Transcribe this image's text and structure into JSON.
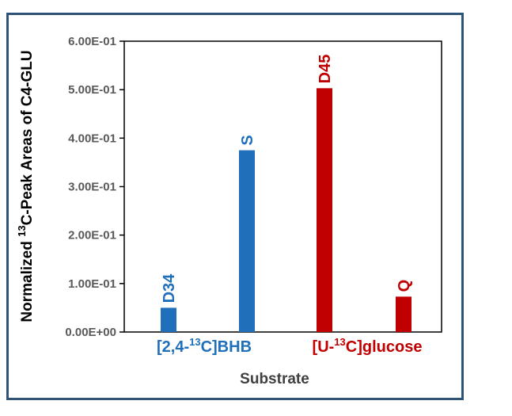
{
  "chart_data": {
    "type": "bar",
    "ylabel": "Normalized 13C-Peak Areas of C4-GLU",
    "ylabel_parts": {
      "pre": "Normalized ",
      "sup": "13",
      "post": "C-Peak Areas of C4-GLU"
    },
    "xlabel": "Substrate",
    "ylim": [
      0,
      0.6
    ],
    "yticks": [
      {
        "value": 0.0,
        "label": "0.00E+00"
      },
      {
        "value": 0.1,
        "label": "1.00E-01"
      },
      {
        "value": 0.2,
        "label": "2.00E-01"
      },
      {
        "value": 0.3,
        "label": "3.00E-01"
      },
      {
        "value": 0.4,
        "label": "4.00E-01"
      },
      {
        "value": 0.5,
        "label": "5.00E-01"
      },
      {
        "value": 0.6,
        "label": "6.00E-01"
      }
    ],
    "groups": [
      {
        "label": "[2,4-13C]BHB",
        "parts": {
          "pre": "[2,4-",
          "sup": "13",
          "post": "C]BHB"
        },
        "color": "#1f6fba"
      },
      {
        "label": "[U-13C]glucose",
        "parts": {
          "pre": "[U-",
          "sup": "13",
          "post": "C]glucose"
        },
        "color": "#c00000"
      }
    ],
    "bars": [
      {
        "label": "D34",
        "value": 0.05,
        "group": 0
      },
      {
        "label": "S",
        "value": 0.375,
        "group": 0
      },
      {
        "label": "D45",
        "value": 0.503,
        "group": 1
      },
      {
        "label": "Q",
        "value": 0.073,
        "group": 1
      }
    ],
    "grid": false,
    "legend": "none"
  }
}
